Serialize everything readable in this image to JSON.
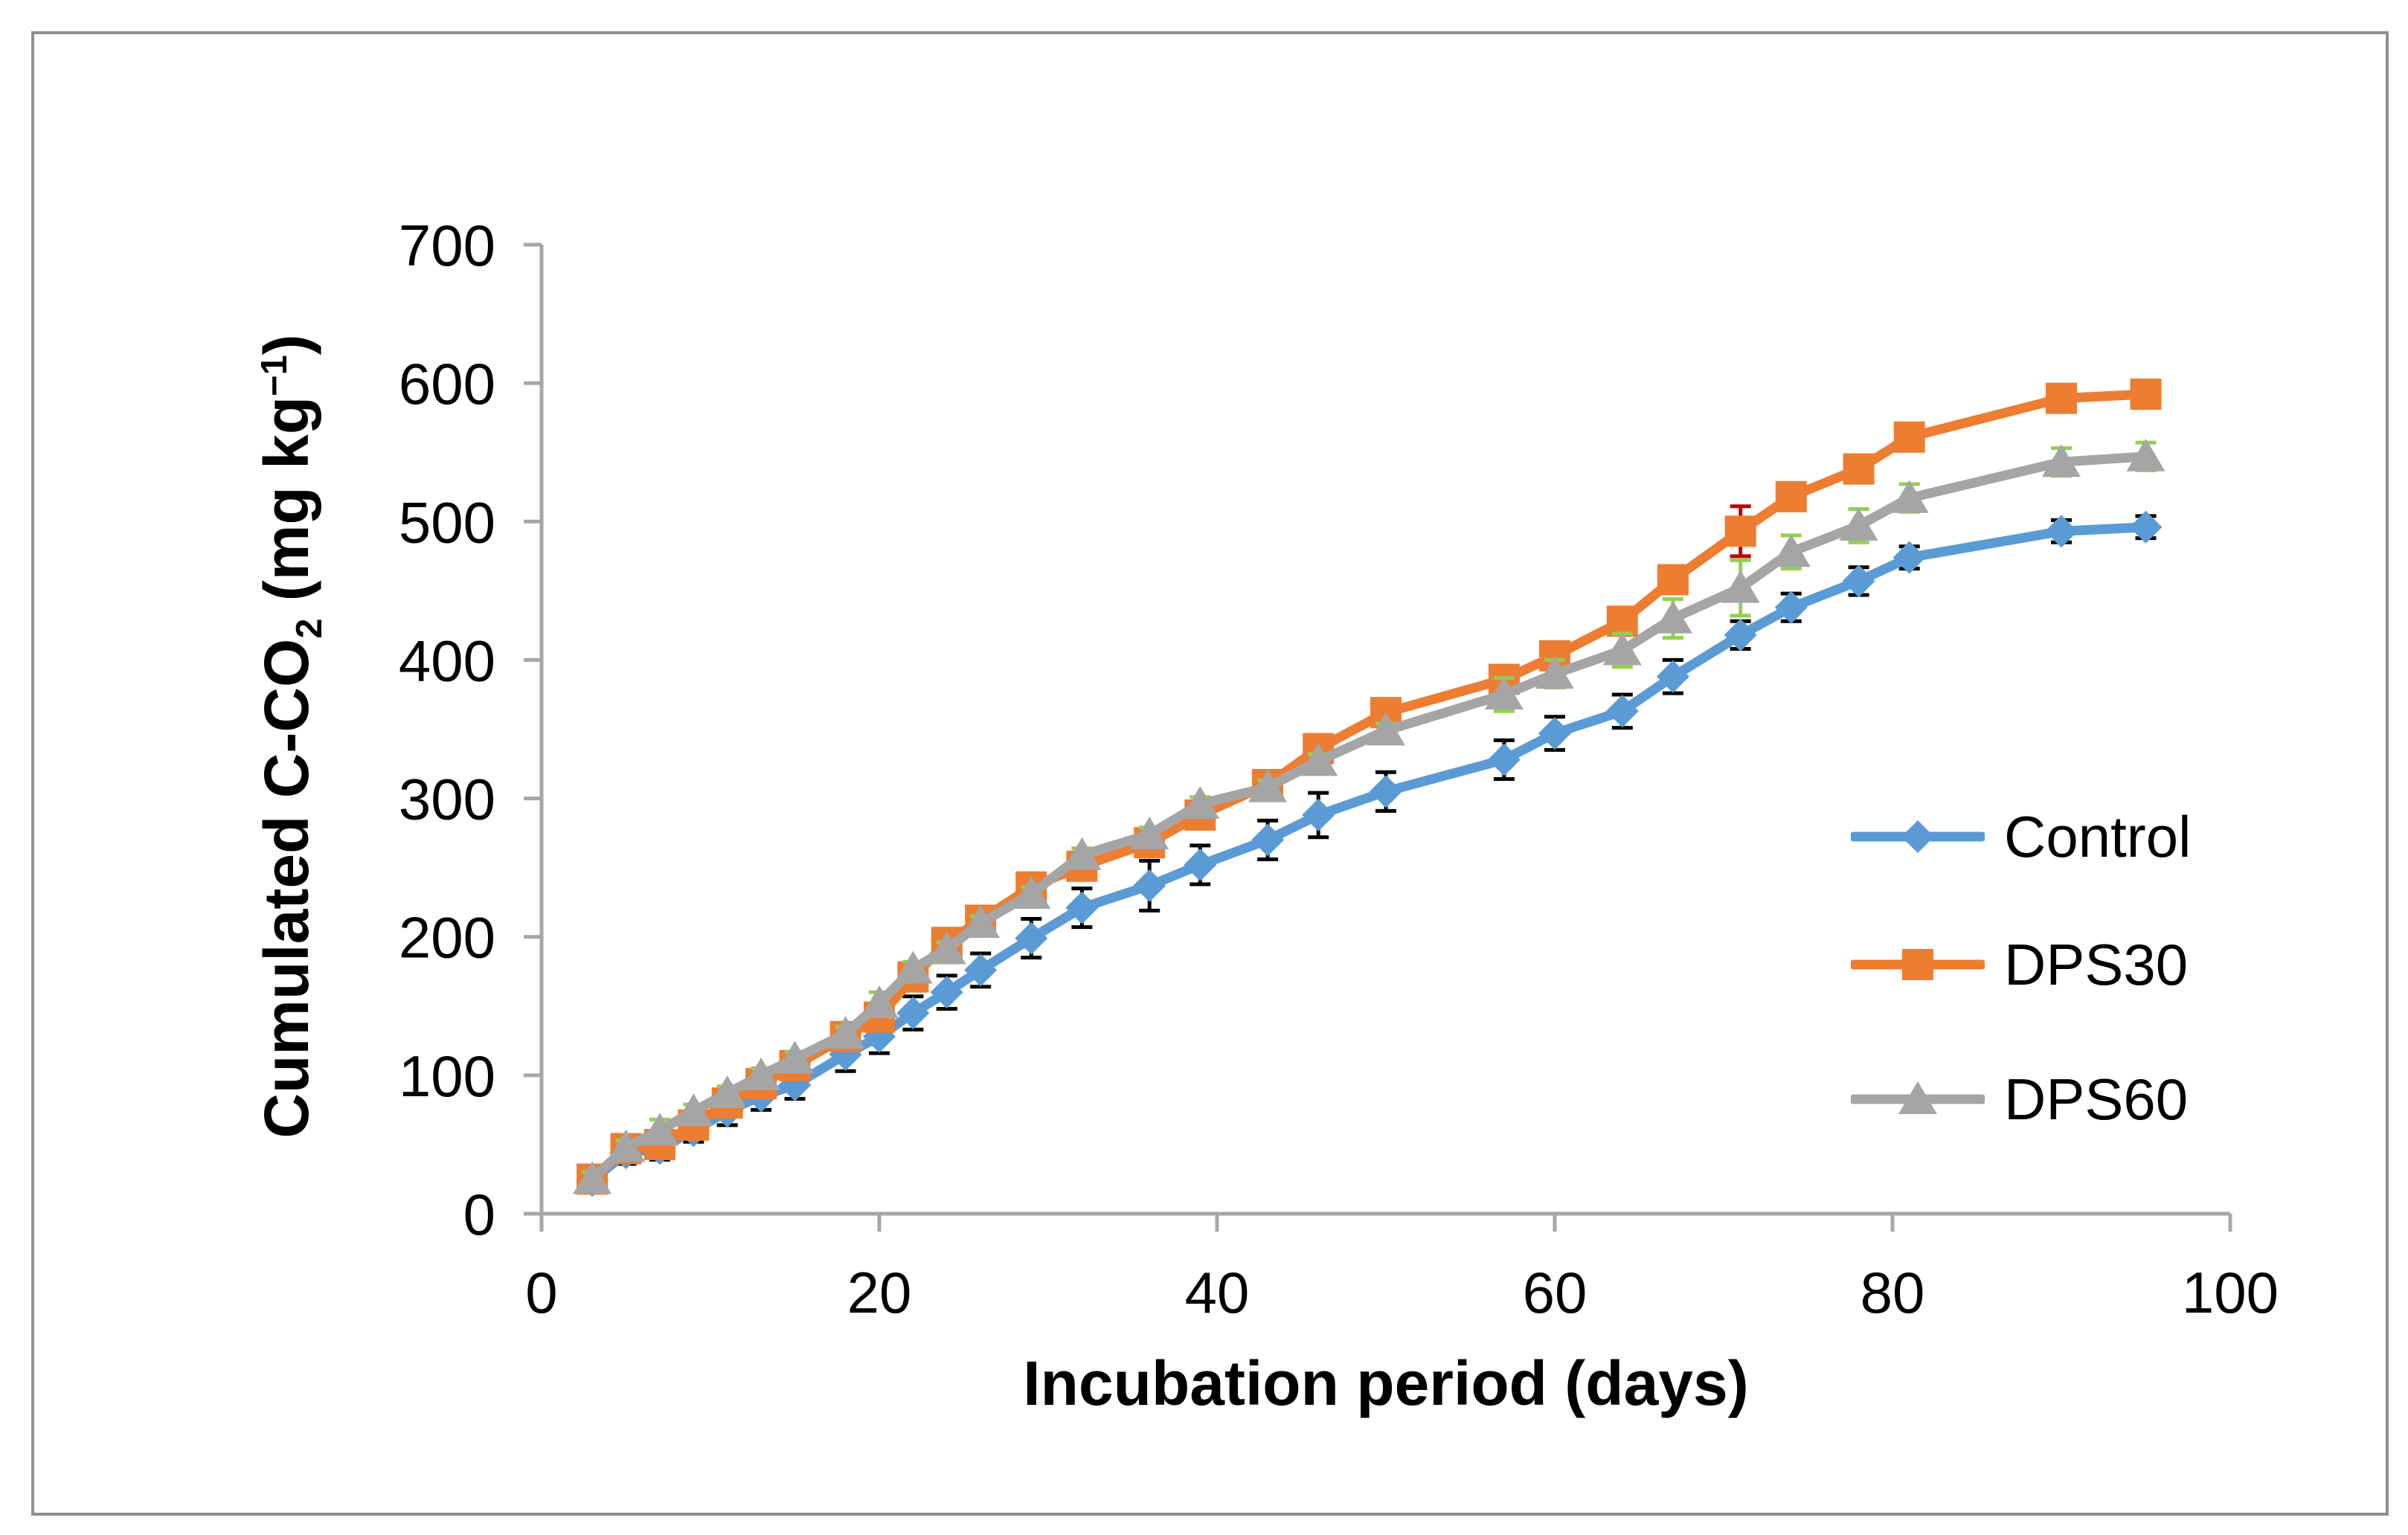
{
  "figure": {
    "background_color": "#FFFFFF",
    "border_color": "#8F8F8F"
  },
  "chart_data": {
    "type": "line",
    "title": "",
    "xlabel": "Incubation period (days)",
    "ylabel": "Cumulated C-CO2 (mg kg-1)",
    "ylabel_parts": {
      "pre": "Cumulated C-CO",
      "sub": "2",
      "mid": " (mg kg",
      "sup": "−1",
      "post": ")"
    },
    "xlim": [
      0,
      100
    ],
    "ylim": [
      0,
      700
    ],
    "x_ticks": [
      0,
      20,
      40,
      60,
      80,
      100
    ],
    "y_ticks": [
      0,
      100,
      200,
      300,
      400,
      500,
      600,
      700
    ],
    "grid": false,
    "legend_position": "right-middle",
    "axis_color": "#A6A6A6",
    "text_color": "#000000",
    "x": [
      3,
      5,
      7,
      9,
      11,
      13,
      15,
      18,
      20,
      22,
      24,
      26,
      29,
      32,
      36,
      39,
      43,
      46,
      50,
      57,
      60,
      64,
      67,
      71,
      74,
      78,
      81,
      90,
      95
    ],
    "series": [
      {
        "name": "Control",
        "marker": "diamond",
        "color": "#5B9BD5",
        "error_color": "#000000",
        "values": [
          24,
          44,
          47,
          60,
          74,
          85,
          93,
          115,
          128,
          145,
          160,
          176,
          199,
          221,
          237,
          252,
          270,
          288,
          305,
          328,
          347,
          363,
          388,
          418,
          438,
          457,
          474,
          493,
          496
        ],
        "errors": [
          5,
          8,
          8,
          8,
          10,
          10,
          10,
          12,
          12,
          12,
          12,
          12,
          14,
          14,
          18,
          14,
          14,
          16,
          14,
          14,
          12,
          12,
          12,
          10,
          10,
          10,
          8,
          8,
          8
        ]
      },
      {
        "name": "DPS30",
        "marker": "square",
        "color": "#ED7D31",
        "error_color": "#C00000",
        "values": [
          25,
          47,
          50,
          64,
          80,
          94,
          107,
          128,
          142,
          171,
          196,
          212,
          236,
          251,
          268,
          288,
          310,
          336,
          362,
          386,
          403,
          428,
          458,
          493,
          518,
          538,
          561,
          589,
          592
        ],
        "errors": [
          4,
          4,
          4,
          4,
          4,
          4,
          4,
          4,
          4,
          4,
          4,
          4,
          4,
          4,
          4,
          4,
          4,
          4,
          4,
          6,
          6,
          6,
          6,
          18,
          6,
          6,
          6,
          6,
          8
        ]
      },
      {
        "name": "DPS60",
        "marker": "triangle",
        "color": "#A5A5A5",
        "error_color": "#92D050",
        "values": [
          25,
          48,
          60,
          74,
          87,
          100,
          112,
          130,
          152,
          177,
          191,
          210,
          231,
          259,
          274,
          296,
          308,
          327,
          349,
          375,
          390,
          407,
          430,
          452,
          478,
          497,
          517,
          543,
          547
        ],
        "errors": [
          5,
          5,
          8,
          5,
          5,
          5,
          5,
          5,
          8,
          5,
          5,
          5,
          5,
          5,
          5,
          5,
          5,
          5,
          5,
          12,
          10,
          12,
          14,
          20,
          12,
          12,
          10,
          10,
          10
        ]
      }
    ]
  }
}
